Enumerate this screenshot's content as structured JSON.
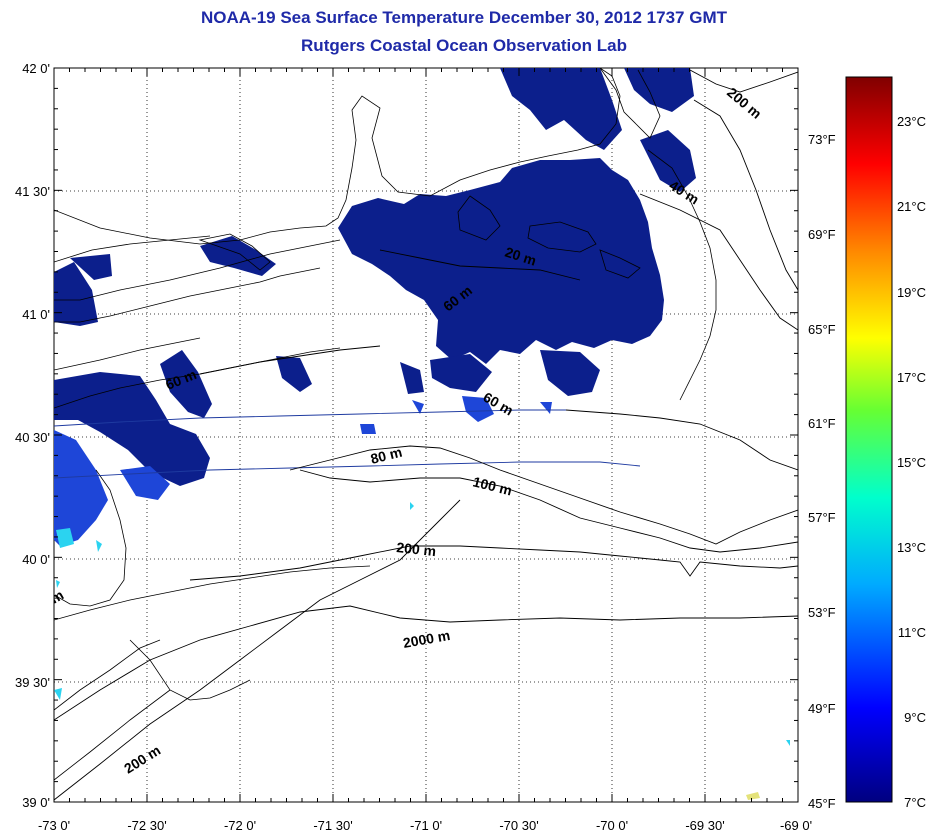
{
  "header": {
    "title": "NOAA-19 Sea Surface Temperature December 30, 2012 1737 GMT",
    "subtitle": "Rutgers Coastal Ocean Observation Lab"
  },
  "map": {
    "lat_labels": [
      "42 0'",
      "41 30'",
      "41 0'",
      "40 30'",
      "40 0'",
      "39 30'",
      "39 0'"
    ],
    "lon_labels": [
      "-73 0'",
      "-72 30'",
      "-72 0'",
      "-71 30'",
      "-71 0'",
      "-70 30'",
      "-70 0'",
      "-69 30'",
      "-69 0'"
    ],
    "lon_range": [
      -73.0,
      -69.0
    ],
    "lat_range": [
      39.0,
      42.0
    ],
    "grid": true,
    "contour_labels": [
      "20 m",
      "40 m",
      "60 m",
      "60 m",
      "80 m",
      "100 m",
      "200 m",
      "200 m",
      "200 m",
      "2000 m",
      "60 m",
      "m"
    ],
    "colors": {
      "sst_cold": "#0c1f8c",
      "sst_mid": "#1e46d8",
      "sst_cyan": "#2bd3f0",
      "title": "#1f2aa8"
    }
  },
  "colorbar": {
    "f_labels": [
      "73°F",
      "69°F",
      "65°F",
      "61°F",
      "57°F",
      "53°F",
      "49°F",
      "45°F"
    ],
    "c_labels": [
      "23°C",
      "21°C",
      "19°C",
      "17°C",
      "15°C",
      "13°C",
      "11°C",
      "9°C",
      "7°C"
    ],
    "colors": [
      "#000080",
      "#0000ff",
      "#00aaff",
      "#00ffcc",
      "#66ff33",
      "#ffff00",
      "#ff8800",
      "#ff0000",
      "#800000"
    ]
  }
}
